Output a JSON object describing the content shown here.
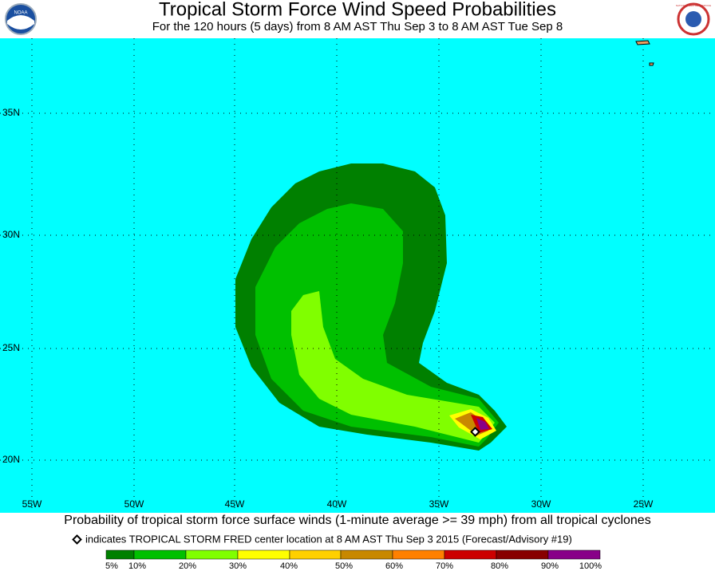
{
  "header": {
    "title": "Tropical Storm Force Wind Speed Probabilities",
    "subtitle": "For the 120 hours (5 days) from 8 AM AST Thu Sep 3 to 8 AM AST Tue Sep 8",
    "left_logo": "NOAA",
    "right_logo": "NATIONAL WEATHER SERVICE"
  },
  "map": {
    "lat_labels": [
      "35N",
      "30N",
      "25N",
      "20N"
    ],
    "lon_labels": [
      "55W",
      "50W",
      "45W",
      "40W",
      "35W",
      "30W",
      "25W"
    ]
  },
  "footer": {
    "caption": "Probability of tropical storm force surface winds (1-minute average >= 39 mph) from all tropical cyclones",
    "marker_note": "indicates TROPICAL STORM FRED center location at 8 AM AST Thu Sep 3 2015 (Forecast/Advisory #19)"
  },
  "legend": {
    "labels": [
      "5%",
      "10%",
      "20%",
      "30%",
      "40%",
      "50%",
      "60%",
      "70%",
      "80%",
      "90%",
      "100%"
    ],
    "colors": [
      "#008000",
      "#00c000",
      "#80ff00",
      "#ffff00",
      "#ffd000",
      "#c88800",
      "#ff8000",
      "#cc0000",
      "#880000",
      "#880088"
    ]
  }
}
